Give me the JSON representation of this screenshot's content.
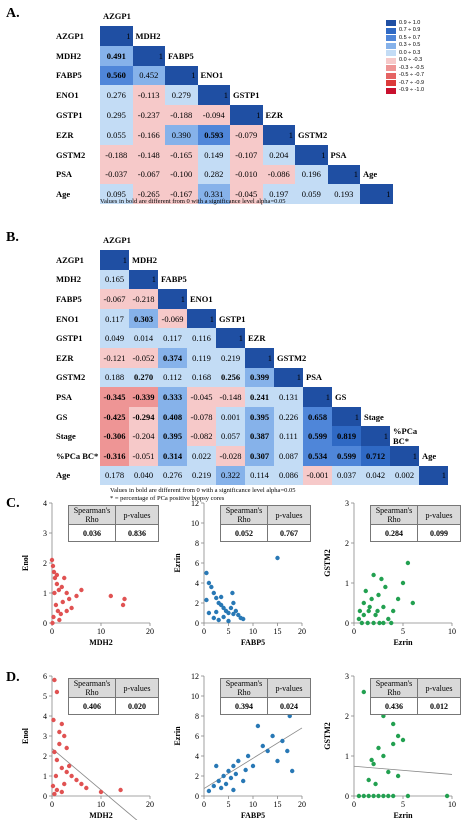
{
  "panels": {
    "A": "A.",
    "B": "B.",
    "C": "C.",
    "D": "D."
  },
  "legend": {
    "items": [
      {
        "label": "0.9 ÷ 1.0",
        "color": "#1f4fa3"
      },
      {
        "label": "0.7 ÷ 0.9",
        "color": "#2f69c4"
      },
      {
        "label": "0.5 ÷ 0.7",
        "color": "#4f86d9"
      },
      {
        "label": "0.3 ÷ 0.5",
        "color": "#86b2ea"
      },
      {
        "label": "0.0 ÷ 0.3",
        "color": "#c3dcf5"
      },
      {
        "label": "0.0 ÷ -0.3",
        "color": "#f6c9c9"
      },
      {
        "label": "-0.3 ÷ -0.5",
        "color": "#ee9595"
      },
      {
        "label": "-0.5 ÷ -0.7",
        "color": "#e56363"
      },
      {
        "label": "-0.7 ÷ -0.9",
        "color": "#dc3a3a"
      },
      {
        "label": "-0.9 ÷ -1.0",
        "color": "#c8102e"
      }
    ]
  },
  "matrixA": {
    "vars": [
      "AZGP1",
      "MDH2",
      "FABP5",
      "ENO1",
      "GSTP1",
      "EZR",
      "GSTM2",
      "PSA",
      "Age"
    ],
    "rows": [
      [
        "1"
      ],
      [
        "0.491",
        "1"
      ],
      [
        "0.560",
        "0.452",
        "1"
      ],
      [
        "0.276",
        "-0.113",
        "0.279",
        "1"
      ],
      [
        "0.295",
        "-0.237",
        "-0.188",
        "-0.094",
        "1"
      ],
      [
        "0.055",
        "-0.166",
        "0.390",
        "0.593",
        "-0.079",
        "1"
      ],
      [
        "-0.188",
        "-0.148",
        "-0.165",
        "0.149",
        "-0.107",
        "0.204",
        "1"
      ],
      [
        "-0.037",
        "-0.067",
        "-0.100",
        "0.282",
        "-0.010",
        "-0.086",
        "0.196",
        "1"
      ],
      [
        "0.095",
        "-0.265",
        "-0.167",
        "0.331",
        "-0.045",
        "0.197",
        "0.059",
        "0.193",
        "1"
      ]
    ],
    "bold": [
      [
        1,
        0
      ],
      [
        2,
        0
      ],
      [
        5,
        3
      ]
    ],
    "note": "Values in bold are different from 0 with a significance level alpha=0.05"
  },
  "matrixB": {
    "vars": [
      "AZGP1",
      "MDH2",
      "FABP5",
      "ENO1",
      "GSTP1",
      "EZR",
      "GSTM2",
      "PSA",
      "GS",
      "Stage",
      "%PCa BC*",
      "Age"
    ],
    "rows": [
      [
        "1"
      ],
      [
        "0.165",
        "1"
      ],
      [
        "-0.067",
        "-0.218",
        "1"
      ],
      [
        "0.117",
        "0.303",
        "-0.069",
        "1"
      ],
      [
        "0.049",
        "0.014",
        "0.117",
        "0.116",
        "1"
      ],
      [
        "-0.121",
        "-0.052",
        "0.374",
        "0.119",
        "0.219",
        "1"
      ],
      [
        "0.188",
        "0.270",
        "0.112",
        "0.168",
        "0.256",
        "0.399",
        "1"
      ],
      [
        "-0.345",
        "-0.339",
        "0.333",
        "-0.045",
        "-0.148",
        "0.241",
        "0.131",
        "1"
      ],
      [
        "-0.425",
        "-0.294",
        "0.408",
        "-0.078",
        "0.001",
        "0.395",
        "0.226",
        "0.658",
        "1"
      ],
      [
        "-0.306",
        "-0.204",
        "0.395",
        "-0.082",
        "0.057",
        "0.387",
        "0.111",
        "0.599",
        "0.819",
        "1"
      ],
      [
        "-0.316",
        "-0.051",
        "0.314",
        "0.022",
        "-0.028",
        "0.307",
        "0.087",
        "0.534",
        "0.599",
        "0.712",
        "1"
      ],
      [
        "0.178",
        "0.040",
        "0.276",
        "0.219",
        "0.322",
        "0.114",
        "0.086",
        "-0.001",
        "0.037",
        "0.042",
        "0.002",
        "1"
      ]
    ],
    "bold": [
      [
        3,
        1
      ],
      [
        5,
        2
      ],
      [
        6,
        1
      ],
      [
        6,
        4
      ],
      [
        6,
        5
      ],
      [
        7,
        0
      ],
      [
        7,
        1
      ],
      [
        7,
        2
      ],
      [
        7,
        5
      ],
      [
        8,
        0
      ],
      [
        8,
        1
      ],
      [
        8,
        2
      ],
      [
        8,
        5
      ],
      [
        8,
        7
      ],
      [
        9,
        0
      ],
      [
        9,
        2
      ],
      [
        9,
        5
      ],
      [
        9,
        7
      ],
      [
        9,
        8
      ],
      [
        10,
        0
      ],
      [
        10,
        2
      ],
      [
        10,
        5
      ],
      [
        10,
        7
      ],
      [
        10,
        8
      ],
      [
        10,
        9
      ]
    ],
    "note": "Values in bold are different from 0 with a significance level alpha=0.05",
    "footnote": "* = percentage of PCa positive biopsy cores"
  },
  "stats_header": {
    "rho": "Spearman's Rho",
    "p": "p-values"
  },
  "chart_data": [
    {
      "type": "scatter",
      "panel": "C",
      "xlabel": "MDH2",
      "ylabel": "Enol",
      "xlim": [
        0,
        20
      ],
      "ylim": [
        0,
        4
      ],
      "xticks": [
        0,
        10,
        20
      ],
      "yticks": [
        0,
        1,
        2,
        3,
        4
      ],
      "color": "#e05252",
      "rho": "0.036",
      "p": "0.836",
      "trend": false,
      "points": [
        [
          0,
          2.1
        ],
        [
          0.2,
          1.9
        ],
        [
          0.4,
          1.7
        ],
        [
          0.6,
          1.5
        ],
        [
          1.0,
          1.3
        ],
        [
          1.4,
          1.1
        ],
        [
          2.0,
          1.2
        ],
        [
          2.5,
          1.5
        ],
        [
          3.0,
          1.0
        ],
        [
          3.5,
          0.8
        ],
        [
          0.5,
          1.0
        ],
        [
          0.8,
          0.6
        ],
        [
          1.2,
          0.4
        ],
        [
          1.8,
          0.3
        ],
        [
          2.2,
          0.7
        ],
        [
          4.0,
          0.5
        ],
        [
          6.0,
          1.1
        ],
        [
          6.5,
          3.2
        ],
        [
          5.0,
          0.9
        ],
        [
          12.0,
          0.9
        ],
        [
          14.5,
          0.6
        ],
        [
          14.8,
          0.8
        ],
        [
          0.3,
          0.2
        ],
        [
          1.5,
          0.1
        ],
        [
          0.1,
          0.0
        ],
        [
          3.0,
          0.4
        ],
        [
          1.0,
          1.6
        ]
      ]
    },
    {
      "type": "scatter",
      "panel": "C",
      "xlabel": "FABP5",
      "ylabel": "Ezrin",
      "xlim": [
        0,
        20
      ],
      "ylim": [
        0,
        12
      ],
      "xticks": [
        0,
        5,
        10,
        15,
        20
      ],
      "yticks": [
        0,
        2,
        4,
        6,
        8,
        10,
        12
      ],
      "color": "#2878b5",
      "rho": "0.052",
      "p": "0.767",
      "trend": false,
      "points": [
        [
          0.5,
          5.0
        ],
        [
          1,
          4.0
        ],
        [
          1.5,
          3.6
        ],
        [
          2,
          3.0
        ],
        [
          2.5,
          2.5
        ],
        [
          3,
          2.0
        ],
        [
          3.5,
          1.8
        ],
        [
          4,
          1.5
        ],
        [
          4.5,
          1.2
        ],
        [
          5,
          1.0
        ],
        [
          5.5,
          1.5
        ],
        [
          6,
          2.0
        ],
        [
          6.5,
          1.2
        ],
        [
          7,
          0.8
        ],
        [
          7.5,
          0.5
        ],
        [
          2,
          0.5
        ],
        [
          1,
          1.0
        ],
        [
          3,
          0.3
        ],
        [
          4,
          0.6
        ],
        [
          5,
          0.2
        ],
        [
          6,
          0.9
        ],
        [
          8,
          0.4
        ],
        [
          15,
          6.5
        ],
        [
          0.5,
          2.3
        ],
        [
          3.5,
          2.6
        ],
        [
          2.5,
          1.1
        ],
        [
          5.8,
          3.0
        ]
      ]
    },
    {
      "type": "scatter",
      "panel": "C",
      "xlabel": "Ezrin",
      "ylabel": "GSTM2",
      "xlim": [
        0,
        10
      ],
      "ylim": [
        0,
        3
      ],
      "xticks": [
        0,
        5,
        10
      ],
      "yticks": [
        0,
        1,
        2,
        3
      ],
      "color": "#22a050",
      "rho": "0.284",
      "p": "0.099",
      "trend": false,
      "points": [
        [
          0.5,
          0.1
        ],
        [
          1.0,
          0.5
        ],
        [
          1.2,
          0.8
        ],
        [
          1.5,
          0.3
        ],
        [
          1.8,
          0.6
        ],
        [
          2.0,
          1.2
        ],
        [
          2.2,
          0.2
        ],
        [
          2.5,
          0.7
        ],
        [
          2.8,
          1.1
        ],
        [
          3.0,
          0.4
        ],
        [
          3.2,
          0.9
        ],
        [
          3.5,
          0.1
        ],
        [
          0.8,
          0.0
        ],
        [
          1.4,
          0.0
        ],
        [
          2.6,
          0.0
        ],
        [
          4.0,
          0.3
        ],
        [
          4.5,
          0.6
        ],
        [
          5.0,
          1.0
        ],
        [
          5.5,
          1.5
        ],
        [
          6.0,
          0.5
        ],
        [
          2.0,
          0.0
        ],
        [
          1.0,
          0.2
        ],
        [
          3.8,
          0.0
        ],
        [
          1.6,
          0.4
        ],
        [
          2.4,
          0.3
        ],
        [
          3.0,
          0.0
        ],
        [
          0.6,
          0.3
        ]
      ]
    },
    {
      "type": "scatter",
      "panel": "D",
      "xlabel": "MDH2",
      "ylabel": "Enol",
      "xlim": [
        0,
        20
      ],
      "ylim": [
        0,
        6
      ],
      "xticks": [
        0,
        10,
        20
      ],
      "yticks": [
        0,
        1,
        2,
        3,
        4,
        5,
        6
      ],
      "color": "#e05252",
      "rho": "0.406",
      "p": "0.020",
      "trend": true,
      "points": [
        [
          0.5,
          5.8
        ],
        [
          1,
          5.2
        ],
        [
          0.3,
          3.8
        ],
        [
          1.5,
          3.2
        ],
        [
          2,
          3.6
        ],
        [
          2.5,
          3.0
        ],
        [
          3,
          2.4
        ],
        [
          0.5,
          2.2
        ],
        [
          1,
          1.8
        ],
        [
          2,
          1.4
        ],
        [
          3,
          1.2
        ],
        [
          4,
          1.0
        ],
        [
          5,
          0.8
        ],
        [
          0.2,
          0.5
        ],
        [
          1,
          0.3
        ],
        [
          0.5,
          0.1
        ],
        [
          2,
          0.2
        ],
        [
          6,
          0.6
        ],
        [
          7,
          0.4
        ],
        [
          10,
          0.2
        ],
        [
          14,
          0.3
        ],
        [
          3.5,
          1.5
        ],
        [
          1.5,
          2.6
        ],
        [
          0.8,
          1.0
        ],
        [
          2.5,
          0.6
        ]
      ]
    },
    {
      "type": "scatter",
      "panel": "D",
      "xlabel": "FABP5",
      "ylabel": "Ezrin",
      "xlim": [
        0,
        20
      ],
      "ylim": [
        0,
        12
      ],
      "xticks": [
        0,
        5,
        10,
        15,
        20
      ],
      "yticks": [
        0,
        2,
        4,
        6,
        8,
        10,
        12
      ],
      "color": "#2878b5",
      "rho": "0.394",
      "p": "0.024",
      "trend": true,
      "points": [
        [
          1,
          0.5
        ],
        [
          2,
          1.0
        ],
        [
          3,
          1.5
        ],
        [
          3.5,
          0.8
        ],
        [
          4,
          2.0
        ],
        [
          4.5,
          1.2
        ],
        [
          5,
          2.5
        ],
        [
          5.5,
          1.8
        ],
        [
          6,
          3.0
        ],
        [
          6.5,
          2.2
        ],
        [
          7,
          3.5
        ],
        [
          8,
          1.5
        ],
        [
          9,
          4.0
        ],
        [
          10,
          3.0
        ],
        [
          11,
          7.0
        ],
        [
          12,
          5.0
        ],
        [
          13,
          4.5
        ],
        [
          14,
          6.0
        ],
        [
          15,
          3.5
        ],
        [
          16,
          5.5
        ],
        [
          17,
          4.5
        ],
        [
          17.5,
          8.0
        ],
        [
          18,
          2.5
        ],
        [
          11,
          10.5
        ],
        [
          2.5,
          3.0
        ],
        [
          6,
          0.6
        ],
        [
          8.5,
          2.6
        ]
      ]
    },
    {
      "type": "scatter",
      "panel": "D",
      "xlabel": "Ezrin",
      "ylabel": "GSTM2",
      "xlim": [
        0,
        10
      ],
      "ylim": [
        0,
        3
      ],
      "xticks": [
        0,
        5,
        10
      ],
      "yticks": [
        0,
        1,
        2,
        3
      ],
      "color": "#22a050",
      "rho": "0.436",
      "p": "0.012",
      "trend": true,
      "points": [
        [
          0.5,
          0.0
        ],
        [
          1.0,
          0.0
        ],
        [
          1.5,
          0.0
        ],
        [
          2.0,
          0.0
        ],
        [
          2.5,
          0.0
        ],
        [
          3.0,
          0.0
        ],
        [
          3.5,
          0.0
        ],
        [
          4.0,
          0.0
        ],
        [
          1.5,
          0.4
        ],
        [
          2.0,
          0.8
        ],
        [
          2.5,
          1.2
        ],
        [
          3.0,
          1.0
        ],
        [
          3.5,
          0.6
        ],
        [
          4.0,
          1.3
        ],
        [
          4.5,
          1.5
        ],
        [
          4.0,
          1.8
        ],
        [
          5.0,
          1.4
        ],
        [
          1.0,
          2.6
        ],
        [
          3.0,
          2.0
        ],
        [
          4.5,
          0.5
        ],
        [
          2.2,
          0.3
        ],
        [
          9.5,
          0.0
        ],
        [
          5.5,
          0.0
        ],
        [
          1.8,
          0.9
        ]
      ]
    }
  ]
}
